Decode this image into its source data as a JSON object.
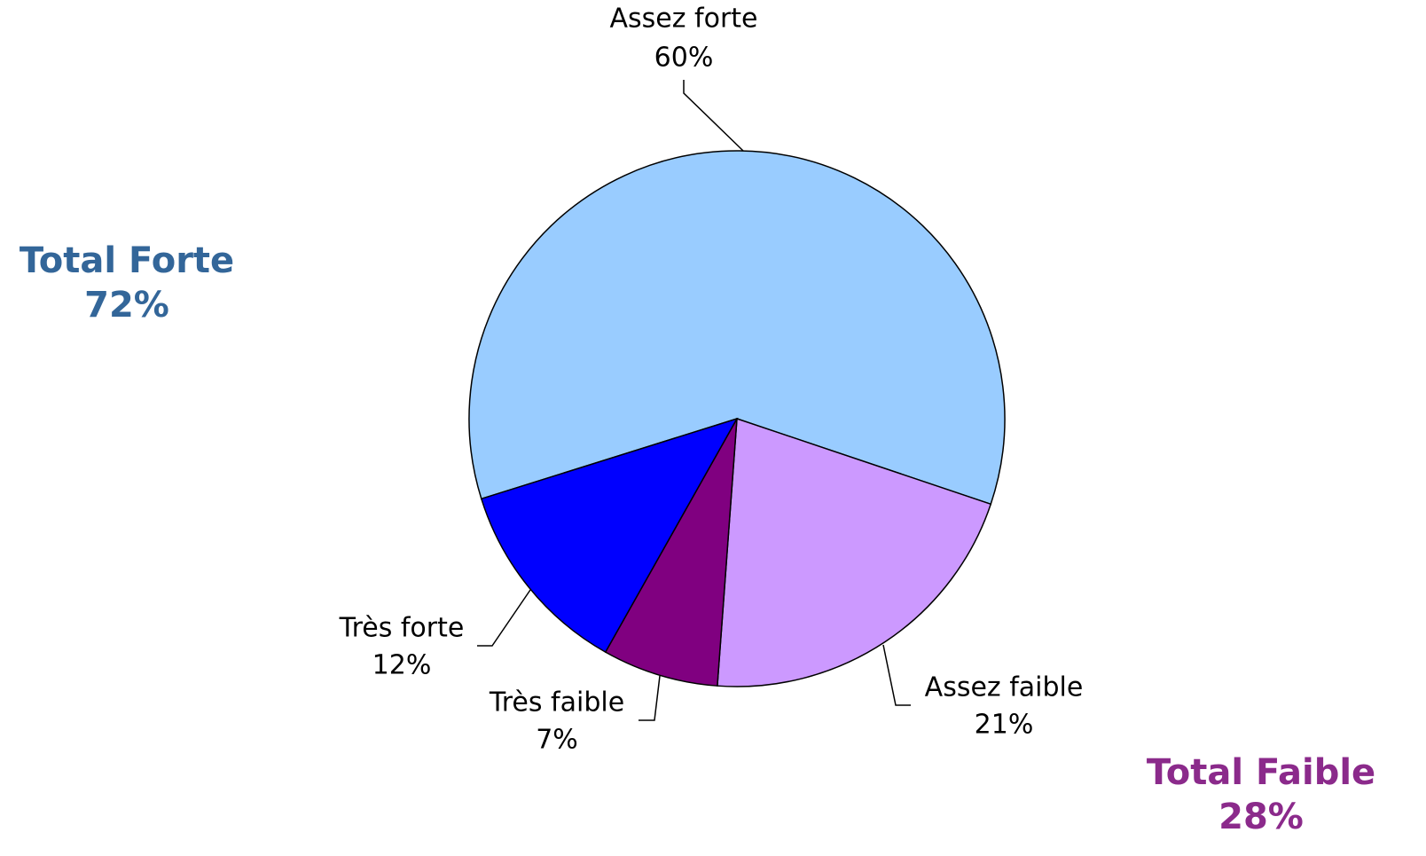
{
  "chart_data": {
    "type": "pie",
    "categories": [
      "Assez forte",
      "Assez faible",
      "Très faible",
      "Très forte"
    ],
    "values": [
      60,
      21,
      7,
      12
    ],
    "value_labels": [
      "60%",
      "21%",
      "7%",
      "12%"
    ],
    "colors": [
      "#99ccff",
      "#cc99ff",
      "#800080",
      "#0000ff"
    ],
    "annotations": [
      {
        "text": "Total Forte",
        "value": 72,
        "value_label": "72%",
        "color": "#336699"
      },
      {
        "text": "Total Faible",
        "value": 28,
        "value_label": "28%",
        "color": "#8b2a8b"
      }
    ]
  }
}
